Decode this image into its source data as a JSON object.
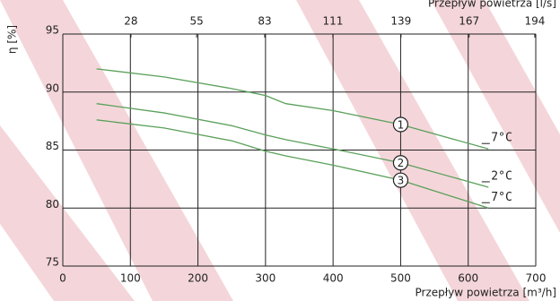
{
  "chart_data": {
    "type": "line",
    "y_label": "η [%]",
    "x_label": "Przepływ powietrza [m³/h]",
    "x2_label": "Przepływ powietrza [l/s]",
    "xlim": [
      0,
      700
    ],
    "xticks": [
      0,
      100,
      200,
      300,
      400,
      500,
      600,
      700
    ],
    "x2lim": [
      0,
      194.4
    ],
    "x2ticks": [
      28,
      55,
      83,
      111,
      139,
      167,
      194
    ],
    "ylim": [
      75,
      95
    ],
    "yticks": [
      75,
      80,
      85,
      90,
      95
    ],
    "grid": true,
    "x": [
      50,
      150,
      250,
      300,
      330,
      400,
      500,
      630
    ],
    "series": [
      {
        "name": "1",
        "annotation": "7°C",
        "color": "#5aa05a",
        "values": [
          92.0,
          91.3,
          90.3,
          89.7,
          89.0,
          88.4,
          87.2,
          85.1
        ]
      },
      {
        "name": "2",
        "annotation": "2°C",
        "color": "#5aa05a",
        "values": [
          89.0,
          88.2,
          87.1,
          86.3,
          85.9,
          85.1,
          83.9,
          81.8
        ]
      },
      {
        "name": "3",
        "annotation": "7°C",
        "color": "#5aa05a",
        "values": [
          87.6,
          86.9,
          85.8,
          84.9,
          84.5,
          83.7,
          82.4,
          80.0
        ]
      }
    ]
  }
}
